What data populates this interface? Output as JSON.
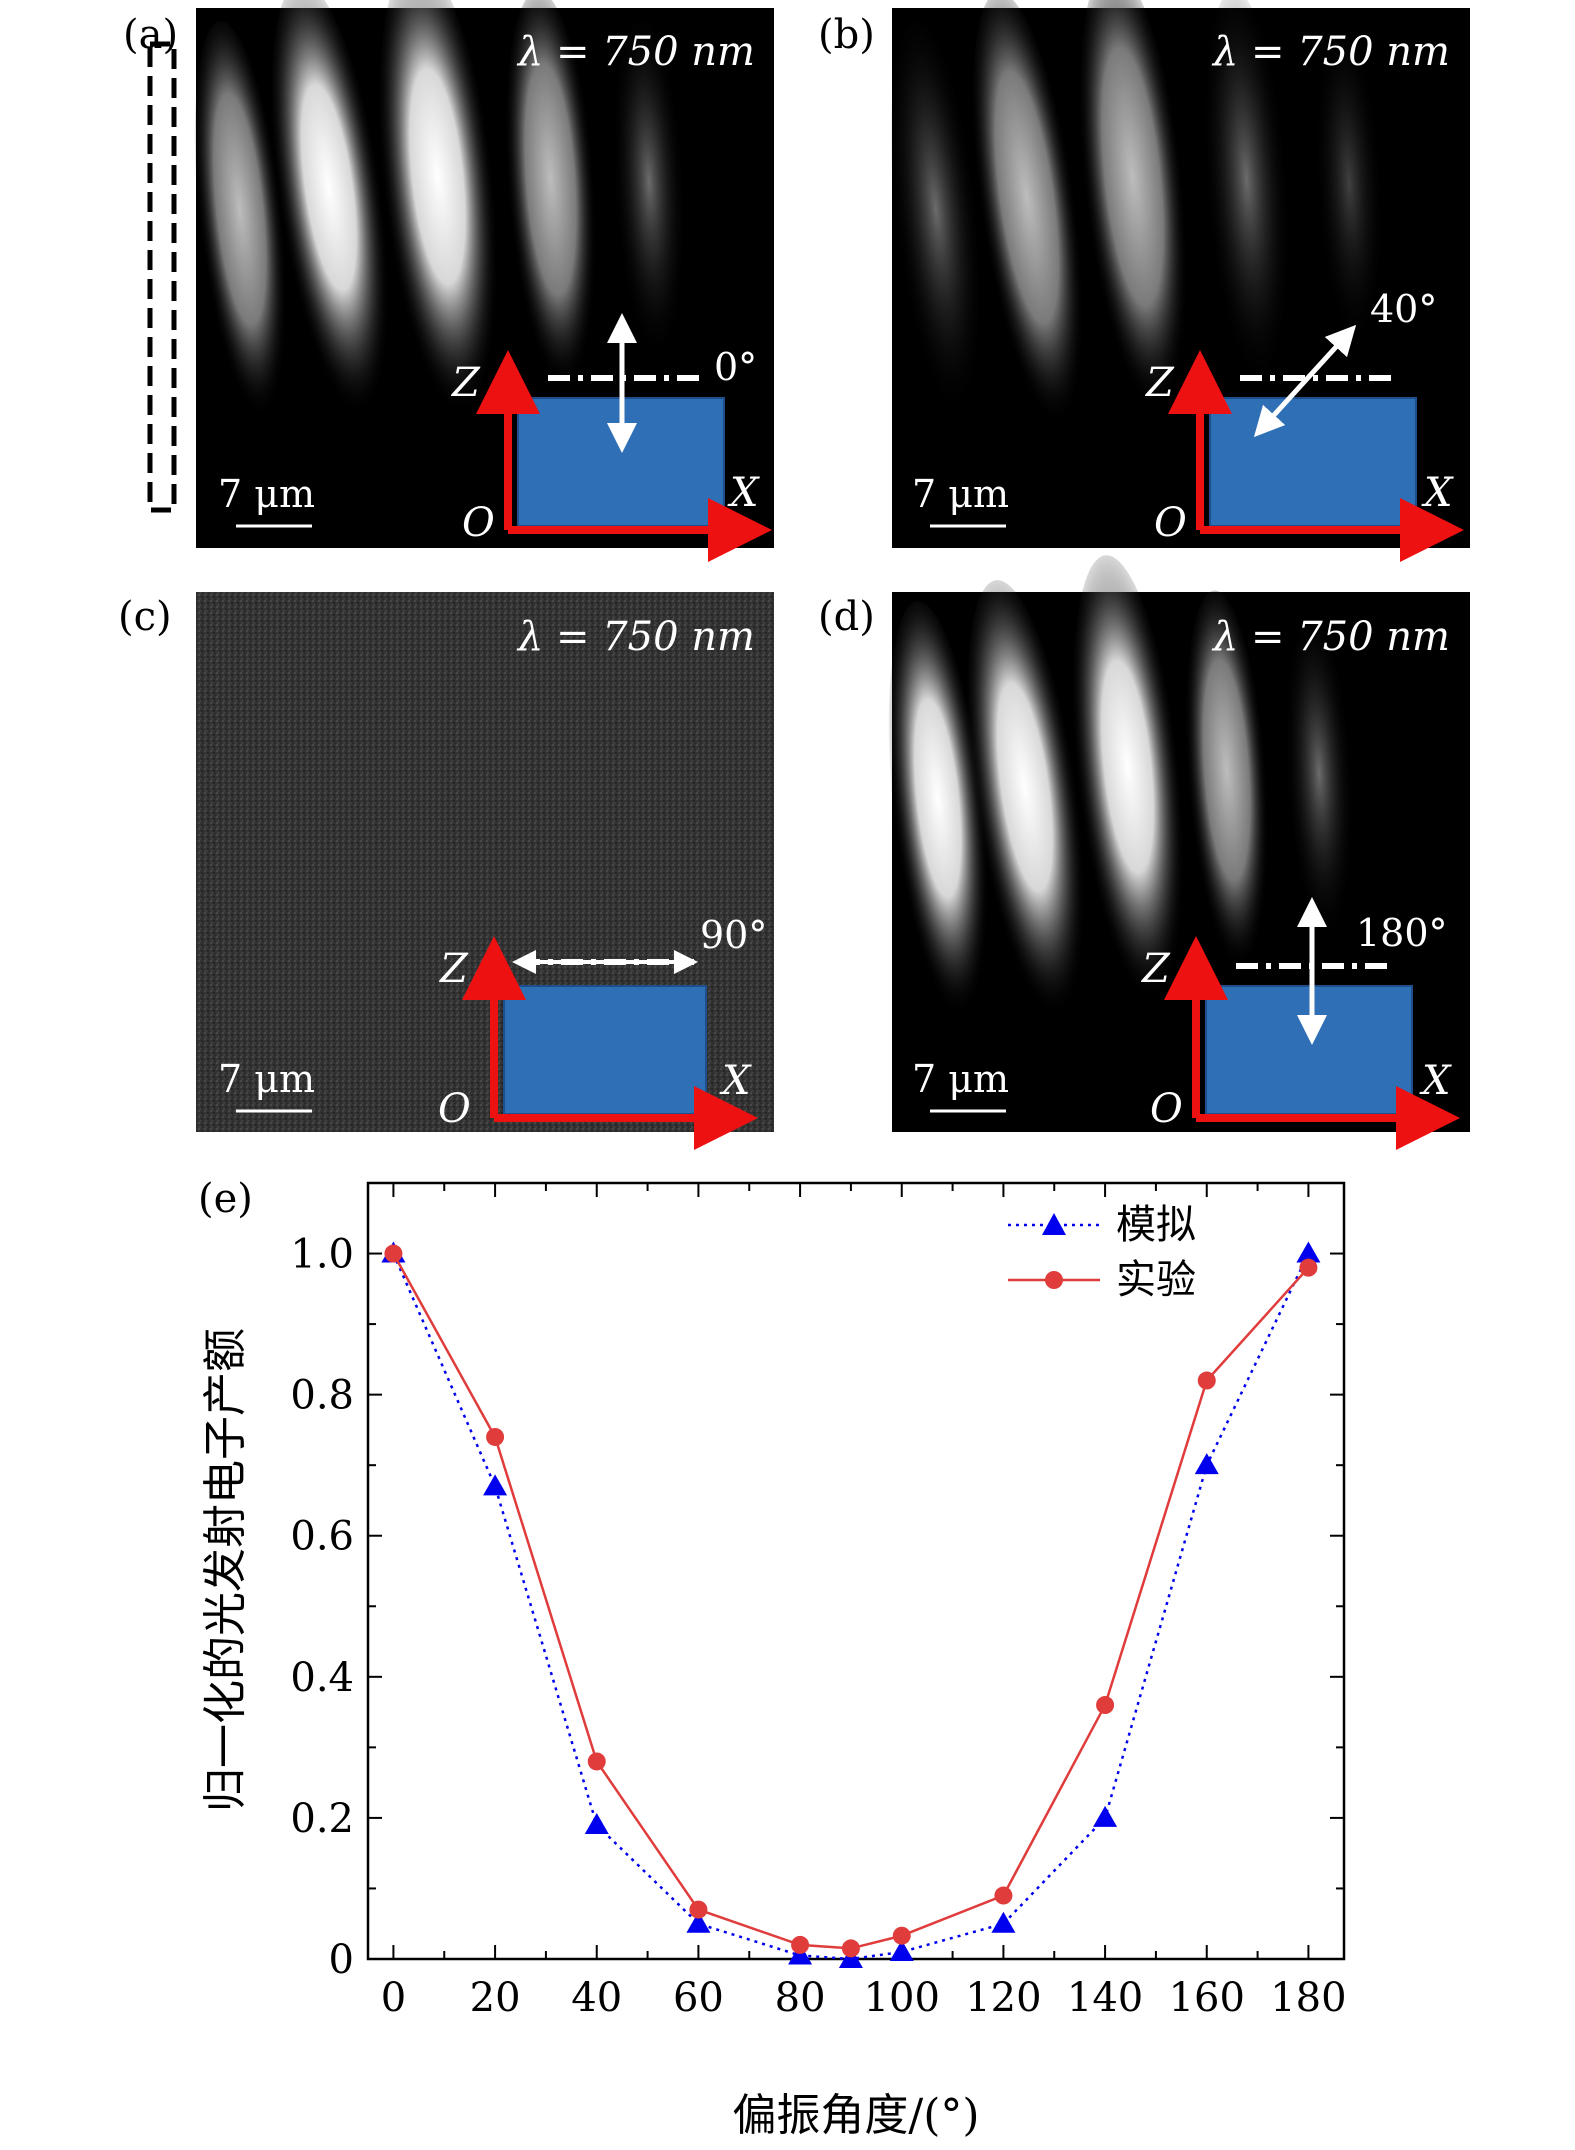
{
  "panels": [
    {
      "tag": "(a)",
      "wavelength": "λ = 750 nm",
      "angle": "0°",
      "scale": "7 μm",
      "axis_z": "Z",
      "axis_x": "X",
      "axis_o": "O"
    },
    {
      "tag": "(b)",
      "wavelength": "λ = 750 nm",
      "angle": "40°",
      "scale": "7 μm",
      "axis_z": "Z",
      "axis_x": "X",
      "axis_o": "O"
    },
    {
      "tag": "(c)",
      "wavelength": "λ = 750 nm",
      "angle": "90°",
      "scale": "7 μm",
      "axis_z": "Z",
      "axis_x": "X",
      "axis_o": "O"
    },
    {
      "tag": "(d)",
      "wavelength": "λ = 750 nm",
      "angle": "180°",
      "scale": "7 μm",
      "axis_z": "Z",
      "axis_x": "X",
      "axis_o": "O"
    }
  ],
  "colors": {
    "sample": "#2e6fb5",
    "axis": "#ee1111",
    "sim": "#0000ee",
    "exp": "#e03c3c"
  },
  "chart_data": {
    "type": "line",
    "tag": "(e)",
    "xlabel": "偏振角度/(°)",
    "ylabel": "归一化的光发射电子产额",
    "xlim": [
      -5,
      187
    ],
    "ylim": [
      0,
      1.1
    ],
    "xticks": [
      "0",
      "20",
      "40",
      "60",
      "80",
      "100",
      "120",
      "140",
      "160",
      "180"
    ],
    "xtick_values": [
      0,
      20,
      40,
      60,
      80,
      100,
      120,
      140,
      160,
      180
    ],
    "yticks": [
      "0",
      "0.2",
      "0.4",
      "0.6",
      "0.8",
      "1.0"
    ],
    "ytick_values": [
      0,
      0.2,
      0.4,
      0.6,
      0.8,
      1.0
    ],
    "legend_position": "top-right",
    "series": [
      {
        "name": "模拟",
        "style": "dotted-triangle",
        "x": [
          0,
          20,
          40,
          60,
          80,
          90,
          100,
          120,
          140,
          160,
          180
        ],
        "y": [
          1.0,
          0.67,
          0.19,
          0.05,
          0.005,
          0.0,
          0.01,
          0.05,
          0.2,
          0.7,
          1.0
        ]
      },
      {
        "name": "实验",
        "style": "solid-circle",
        "x": [
          0,
          20,
          40,
          60,
          80,
          90,
          100,
          120,
          140,
          160,
          180
        ],
        "y": [
          1.0,
          0.74,
          0.28,
          0.07,
          0.02,
          0.015,
          0.033,
          0.09,
          0.36,
          0.82,
          0.98
        ]
      }
    ]
  }
}
